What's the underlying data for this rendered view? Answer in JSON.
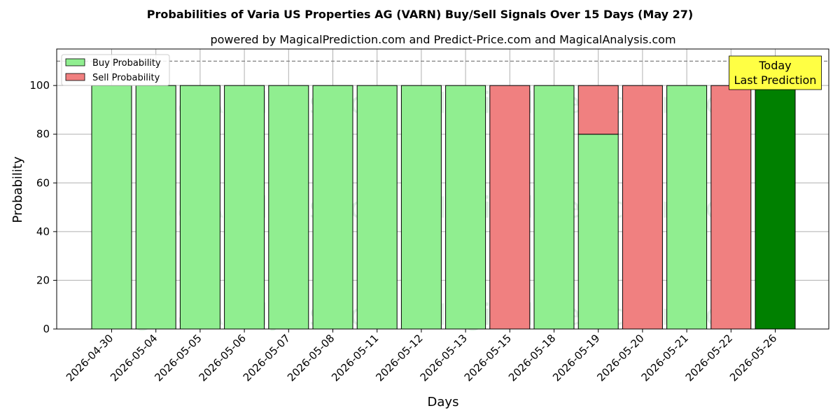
{
  "chart_data": {
    "type": "bar",
    "title": "Probabilities of Varia US Properties AG (VARN) Buy/Sell Signals Over 15 Days (May 27)",
    "subtitle": "powered by MagicalPrediction.com and Predict-Price.com and MagicalAnalysis.com",
    "xlabel": "Days",
    "ylabel": "Probability",
    "ylim": [
      0,
      115
    ],
    "yticks": [
      0,
      20,
      40,
      60,
      80,
      100
    ],
    "grid": true,
    "legend_position": "top-left",
    "categories": [
      "2026-04-30",
      "2026-05-04",
      "2026-05-05",
      "2026-05-06",
      "2026-05-07",
      "2026-05-08",
      "2026-05-11",
      "2026-05-12",
      "2026-05-13",
      "2026-05-15",
      "2026-05-18",
      "2026-05-19",
      "2026-05-20",
      "2026-05-21",
      "2026-05-22",
      "2026-05-26"
    ],
    "series": [
      {
        "name": "Buy Probability",
        "color": "#90ee90",
        "values": [
          100,
          100,
          100,
          100,
          100,
          100,
          100,
          100,
          100,
          0,
          100,
          80,
          0,
          100,
          0,
          100
        ]
      },
      {
        "name": "Sell Probability",
        "color": "#f08080",
        "values": [
          0,
          0,
          0,
          0,
          0,
          0,
          0,
          0,
          0,
          100,
          0,
          20,
          100,
          0,
          100,
          0
        ]
      }
    ],
    "highlight": {
      "index": 15,
      "color": "#008000"
    },
    "reference_line": {
      "y": 110,
      "style": "dashed",
      "color": "#808080"
    },
    "annotation": {
      "lines": [
        "Today",
        "Last Prediction"
      ],
      "background": "#ffff44",
      "anchor": "last-bar-top"
    },
    "watermarks": [
      "MagicalAnalysis.com",
      "MagicalPrediction.com"
    ]
  }
}
